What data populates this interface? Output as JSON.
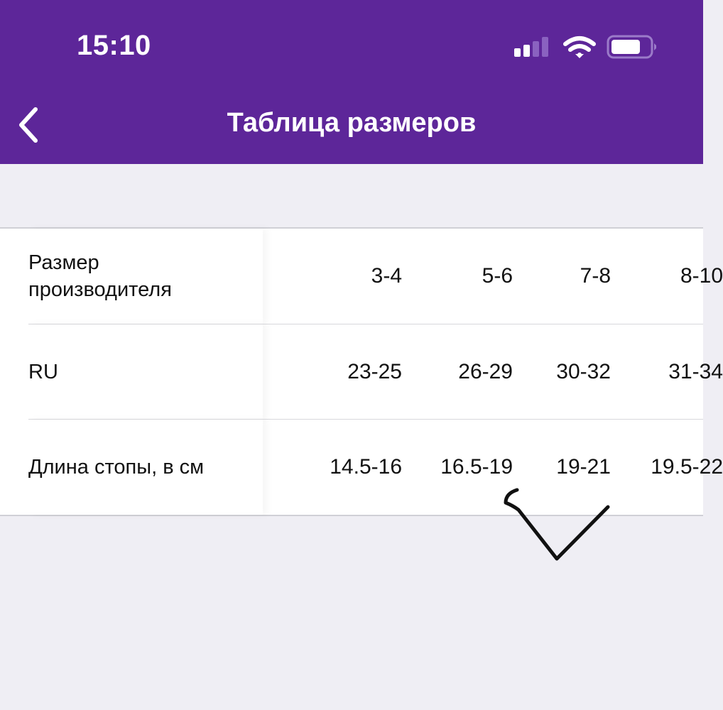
{
  "status_bar": {
    "time": "15:10",
    "signal_icon": "cellular-signal-icon",
    "wifi_icon": "wifi-icon",
    "battery_icon": "battery-icon"
  },
  "nav": {
    "title": "Таблица размеров",
    "back_icon": "chevron-left-icon"
  },
  "colors": {
    "header": "#5d2699",
    "background": "#efeef4"
  },
  "table": {
    "rows": [
      {
        "label": "Размер производителя",
        "values": [
          "3-4",
          "5-6",
          "7-8",
          "8-10"
        ]
      },
      {
        "label": "RU",
        "values": [
          "23-25",
          "26-29",
          "30-32",
          "31-34"
        ]
      },
      {
        "label": "Длина стопы, в см",
        "values": [
          "14.5-16",
          "16.5-19",
          "19-21",
          "19.5-22"
        ]
      }
    ]
  },
  "annotation": {
    "type": "hand-drawn-checkmark",
    "color": "#111111",
    "marks_column": 2
  }
}
